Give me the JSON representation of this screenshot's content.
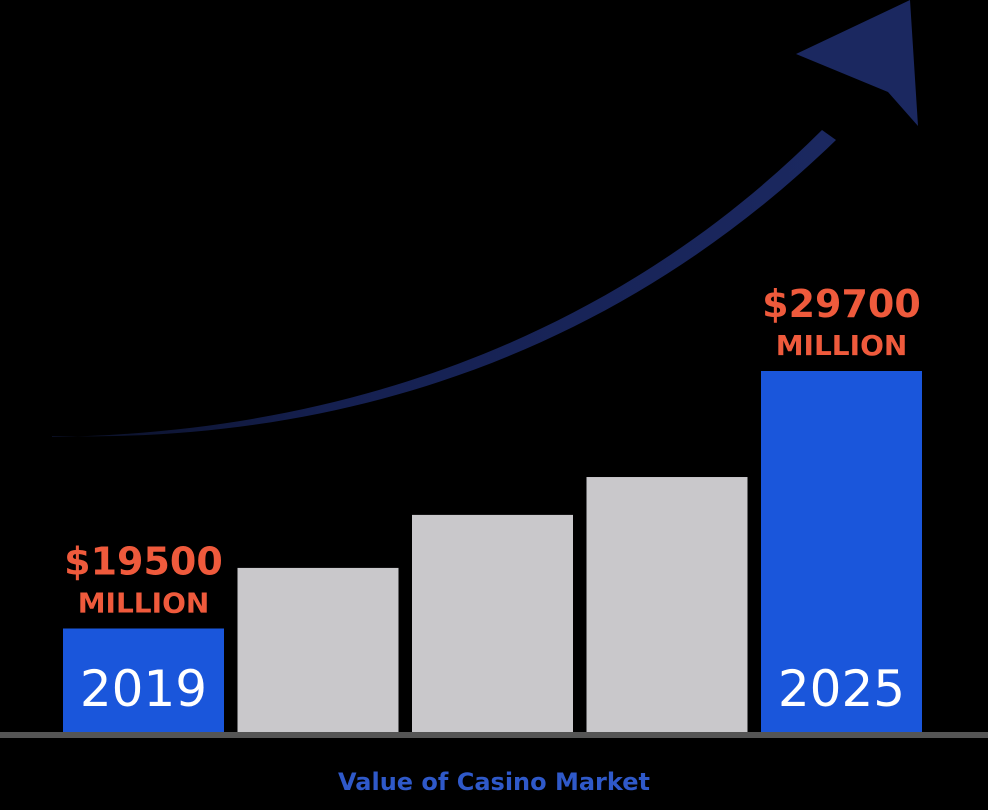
{
  "colors": {
    "background": "#000000",
    "highlight_bar": "#1a56db",
    "neutral_bar": "#c9c8cb",
    "value_label": "#ef5a3c",
    "category_label": "#ffffff",
    "axis_line": "#555555",
    "arrow": "#1b2860",
    "caption": "#2f59c9"
  },
  "chart_data": {
    "type": "bar",
    "categories": [
      "2019",
      "",
      "",
      "",
      "2025"
    ],
    "values": [
      19500,
      21900,
      24000,
      25500,
      29700
    ],
    "highlighted": [
      true,
      false,
      false,
      false,
      true
    ],
    "value_labels": [
      {
        "amount": "$19500",
        "unit": "MILLION"
      },
      null,
      null,
      null,
      {
        "amount": "$29700",
        "unit": "MILLION"
      }
    ],
    "title": "",
    "xlabel": "Value of Casino Market",
    "ylabel": "",
    "ylim": [
      15400,
      29700
    ],
    "grid": false,
    "legend": "none",
    "trend_arrow": "up-right"
  }
}
